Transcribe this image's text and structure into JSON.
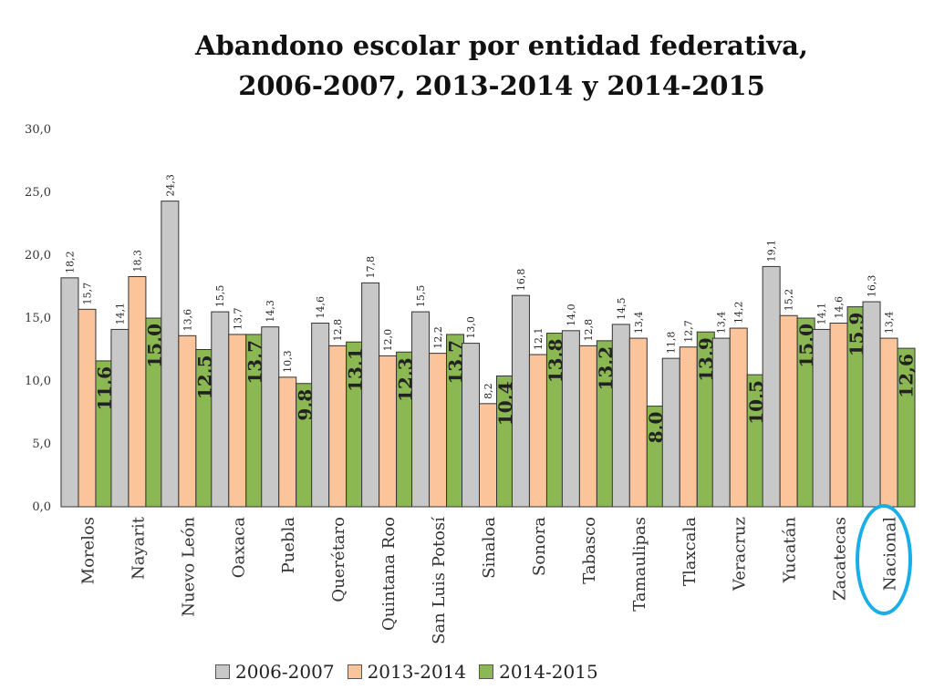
{
  "title_line1": "Abandono escolar por entidad federativa,",
  "title_line2": "2006-2007, 2013-2014 y 2014-2015",
  "chart_data": {
    "type": "bar",
    "title": "Abandono escolar por entidad federativa, 2006-2007, 2013-2014 y 2014-2015",
    "xlabel": "",
    "ylabel": "",
    "ylim": [
      0,
      30
    ],
    "yticks": [
      "0,0",
      "5,0",
      "10,0",
      "15,0",
      "20,0",
      "25,0",
      "30,0"
    ],
    "grid": false,
    "legend_position": "bottom",
    "categories": [
      "Morelos",
      "Nayarit",
      "Nuevo León",
      "Oaxaca",
      "Puebla",
      "Querétaro",
      "Quintana Roo",
      "San Luis Potosí",
      "Sinaloa",
      "Sonora",
      "Tabasco",
      "Tamaulipas",
      "Tlaxcala",
      "Veracruz",
      "Yucatán",
      "Zacatecas",
      "Nacional"
    ],
    "series": [
      {
        "name": "2006-2007",
        "color": "#c8c8c8",
        "values": [
          18.2,
          14.1,
          24.3,
          15.5,
          14.3,
          14.6,
          17.8,
          15.5,
          13.0,
          16.8,
          14.0,
          14.5,
          11.8,
          13.4,
          19.1,
          14.1,
          16.3
        ],
        "labels": [
          "18,2",
          "14,1",
          "24,3",
          "15,5",
          "14,3",
          "14,6",
          "17,8",
          "15,5",
          "13,0",
          "16,8",
          "14,0",
          "14,5",
          "11,8",
          "13,4",
          "19,1",
          "14,1",
          "16,3"
        ]
      },
      {
        "name": "2013-2014",
        "color": "#fbc49a",
        "values": [
          15.7,
          18.3,
          13.6,
          13.7,
          10.3,
          12.8,
          12.0,
          12.2,
          8.2,
          12.1,
          12.8,
          13.4,
          12.7,
          14.2,
          15.2,
          14.6,
          13.4
        ],
        "labels": [
          "15,7",
          "18,3",
          "13,6",
          "13,7",
          "10,3",
          "12,8",
          "12,0",
          "12,2",
          "8,2",
          "12,1",
          "12,8",
          "13,4",
          "12,7",
          "14,2",
          "15,2",
          "14,6",
          "13,4"
        ]
      },
      {
        "name": "2014-2015",
        "color": "#8cb853",
        "values": [
          11.6,
          15.0,
          12.5,
          13.7,
          9.8,
          13.1,
          12.3,
          13.7,
          10.4,
          13.8,
          13.2,
          8.0,
          13.9,
          10.5,
          15.0,
          15.9,
          12.6
        ],
        "labels": [
          "11,6",
          "15,0",
          "12,5",
          "13,7",
          "9,8",
          "13,1",
          "12,3",
          "13,7",
          "10,4",
          "13,8",
          "13,2",
          "8,0",
          "13,9",
          "10,5",
          "15,0",
          "15,9",
          "12,6"
        ]
      }
    ],
    "highlighted_category": "Nacional",
    "highlight_color": "#19aee6"
  }
}
